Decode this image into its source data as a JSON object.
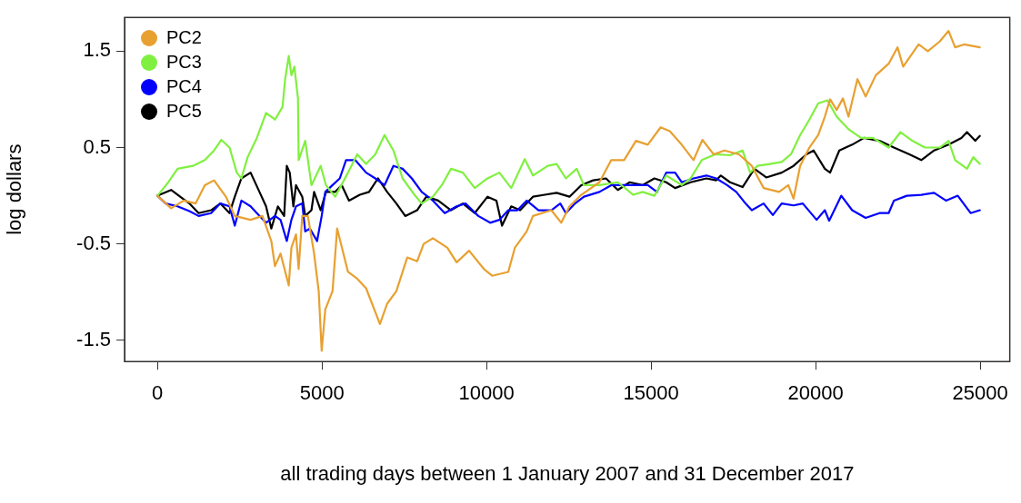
{
  "chart_data": {
    "type": "line",
    "xlabel": "all trading days between 1 January 2007 and 31 December 2017",
    "ylabel": "log dollars",
    "xlim": [
      -1000,
      25900
    ],
    "ylim": [
      -1.72,
      1.85
    ],
    "xticks": [
      0,
      5000,
      10000,
      15000,
      20000,
      25000
    ],
    "yticks": [
      -1.5,
      -0.5,
      0.5,
      1.5
    ],
    "grid": false,
    "legend": "top left",
    "marker": "none",
    "line_style": "solid",
    "series": [
      {
        "name": "PC2",
        "color": "#e8a030",
        "x": [
          0,
          415,
          800,
          1160,
          1440,
          1720,
          2080,
          2350,
          2830,
          3190,
          3460,
          3570,
          3740,
          3990,
          4070,
          4210,
          4290,
          4400,
          4570,
          4760,
          4900,
          4990,
          5100,
          5320,
          5460,
          5790,
          6070,
          6340,
          6760,
          6980,
          7260,
          7590,
          7890,
          8090,
          8370,
          8810,
          9090,
          9470,
          9920,
          10170,
          10660,
          10860,
          11220,
          11410,
          11970,
          12270,
          12520,
          12880,
          13430,
          13790,
          14180,
          14540,
          14900,
          15290,
          15570,
          15930,
          16290,
          16560,
          16900,
          17230,
          17670,
          18060,
          18420,
          18890,
          19170,
          19330,
          19530,
          19810,
          20080,
          20280,
          20440,
          20640,
          20830,
          21000,
          21270,
          21520,
          21830,
          22220,
          22490,
          22660,
          23130,
          23410,
          23770,
          24040,
          24240,
          24510,
          24990
        ],
        "values": [
          0.0,
          -0.13,
          -0.05,
          -0.08,
          0.11,
          0.16,
          -0.01,
          -0.21,
          -0.25,
          -0.21,
          -0.47,
          -0.73,
          -0.6,
          -0.93,
          -0.54,
          -0.4,
          -0.76,
          -0.21,
          -0.21,
          -0.6,
          -0.99,
          -1.61,
          -1.18,
          -0.99,
          -0.34,
          -0.79,
          -0.86,
          -0.96,
          -1.33,
          -1.12,
          -0.99,
          -0.64,
          -0.68,
          -0.5,
          -0.44,
          -0.54,
          -0.69,
          -0.57,
          -0.76,
          -0.83,
          -0.79,
          -0.54,
          -0.37,
          -0.21,
          -0.15,
          -0.28,
          -0.11,
          0.01,
          0.14,
          0.37,
          0.37,
          0.57,
          0.53,
          0.71,
          0.67,
          0.53,
          0.37,
          0.58,
          0.43,
          0.47,
          0.43,
          0.31,
          0.08,
          0.04,
          0.11,
          -0.03,
          0.31,
          0.5,
          0.63,
          0.82,
          1.0,
          0.89,
          1.01,
          0.82,
          1.21,
          1.03,
          1.25,
          1.37,
          1.54,
          1.34,
          1.57,
          1.5,
          1.6,
          1.71,
          1.54,
          1.57,
          1.54
        ]
      },
      {
        "name": "PC3",
        "color": "#80f040",
        "x": [
          0,
          330,
          610,
          1080,
          1440,
          1720,
          1940,
          2190,
          2410,
          2550,
          2740,
          3020,
          3300,
          3570,
          3800,
          3880,
          3990,
          4070,
          4160,
          4270,
          4290,
          4490,
          4680,
          4960,
          5120,
          5400,
          5790,
          6070,
          6340,
          6620,
          6900,
          7170,
          7450,
          7810,
          8030,
          8370,
          8640,
          8920,
          9280,
          9640,
          10030,
          10390,
          10750,
          11160,
          11410,
          11860,
          12130,
          12410,
          12740,
          12960,
          13430,
          13990,
          14460,
          14740,
          15100,
          15460,
          15930,
          16200,
          16540,
          16950,
          17400,
          17780,
          18010,
          18230,
          18610,
          18970,
          19250,
          19530,
          19810,
          20080,
          20360,
          20640,
          21000,
          21380,
          21740,
          22220,
          22580,
          22940,
          23320,
          23770,
          24040,
          24240,
          24600,
          24790,
          24990
        ],
        "values": [
          0.0,
          0.14,
          0.28,
          0.31,
          0.37,
          0.47,
          0.58,
          0.5,
          0.24,
          0.18,
          0.4,
          0.6,
          0.86,
          0.79,
          0.92,
          1.21,
          1.45,
          1.25,
          1.34,
          1.01,
          0.37,
          0.57,
          0.11,
          0.31,
          0.11,
          -0.01,
          0.24,
          0.43,
          0.33,
          0.43,
          0.63,
          0.47,
          0.18,
          0.01,
          -0.08,
          -0.01,
          0.11,
          0.28,
          0.24,
          0.08,
          0.18,
          0.24,
          0.08,
          0.38,
          0.21,
          0.31,
          0.33,
          0.18,
          0.28,
          0.11,
          0.11,
          0.14,
          0.01,
          0.04,
          0.0,
          0.21,
          0.11,
          0.18,
          0.37,
          0.43,
          0.42,
          0.47,
          0.24,
          0.31,
          0.33,
          0.35,
          0.43,
          0.63,
          0.79,
          0.96,
          0.99,
          0.82,
          0.69,
          0.6,
          0.6,
          0.5,
          0.66,
          0.57,
          0.5,
          0.5,
          0.57,
          0.37,
          0.28,
          0.4,
          0.33
        ]
      },
      {
        "name": "PC4",
        "color": "#0000ff",
        "x": [
          0,
          250,
          610,
          970,
          1250,
          1630,
          1910,
          2190,
          2350,
          2550,
          2830,
          3020,
          3300,
          3570,
          3740,
          3930,
          4070,
          4210,
          4400,
          4490,
          4630,
          4850,
          4990,
          5100,
          5320,
          5540,
          5730,
          6010,
          6340,
          6620,
          6900,
          7170,
          7450,
          7730,
          8030,
          8370,
          8730,
          9090,
          9360,
          9750,
          10110,
          10390,
          10660,
          10940,
          11220,
          11580,
          11970,
          12240,
          12410,
          12690,
          12960,
          13430,
          13790,
          14180,
          14540,
          14900,
          15180,
          15460,
          15730,
          15930,
          16290,
          16680,
          16980,
          17310,
          17590,
          17870,
          18060,
          18420,
          18700,
          18970,
          19330,
          19610,
          20030,
          20280,
          20410,
          20780,
          21110,
          21520,
          21940,
          22220,
          22380,
          22770,
          23210,
          23600,
          23960,
          24320,
          24710,
          24990
        ],
        "values": [
          0.0,
          -0.08,
          -0.11,
          -0.16,
          -0.21,
          -0.18,
          -0.08,
          -0.11,
          -0.31,
          -0.05,
          -0.11,
          -0.18,
          -0.28,
          -0.21,
          -0.25,
          -0.47,
          -0.25,
          -0.11,
          -0.08,
          -0.37,
          -0.34,
          -0.47,
          -0.21,
          0.04,
          0.11,
          0.18,
          0.37,
          0.37,
          0.24,
          0.18,
          0.11,
          0.31,
          0.28,
          0.18,
          0.04,
          -0.05,
          -0.18,
          -0.11,
          -0.08,
          -0.21,
          -0.28,
          -0.25,
          -0.15,
          -0.15,
          -0.05,
          -0.15,
          -0.15,
          -0.08,
          -0.18,
          -0.08,
          -0.01,
          0.04,
          0.11,
          0.11,
          0.11,
          0.11,
          0.04,
          0.24,
          0.24,
          0.14,
          0.18,
          0.21,
          0.18,
          0.11,
          0.04,
          -0.08,
          -0.15,
          -0.08,
          -0.2,
          -0.08,
          -0.1,
          -0.08,
          -0.25,
          -0.15,
          -0.26,
          0.0,
          -0.15,
          -0.23,
          -0.18,
          -0.18,
          -0.05,
          0.0,
          0.01,
          0.03,
          -0.05,
          0.0,
          -0.18,
          -0.15
        ]
      },
      {
        "name": "PC5",
        "color": "#000000",
        "x": [
          0,
          415,
          690,
          970,
          1250,
          1630,
          1910,
          2190,
          2350,
          2550,
          2830,
          3100,
          3300,
          3460,
          3660,
          3850,
          3930,
          4020,
          4130,
          4210,
          4400,
          4490,
          4680,
          4760,
          4960,
          5120,
          5400,
          5600,
          5820,
          6150,
          6430,
          6700,
          6980,
          7260,
          7530,
          7890,
          8170,
          8530,
          8920,
          9280,
          9640,
          10030,
          10300,
          10470,
          10750,
          11020,
          11410,
          11770,
          12130,
          12520,
          12880,
          13240,
          13630,
          13990,
          14350,
          14740,
          15100,
          15460,
          15730,
          16200,
          16680,
          16980,
          17120,
          17400,
          17780,
          18140,
          18500,
          18970,
          19330,
          19720,
          19940,
          20280,
          20440,
          20720,
          21110,
          21470,
          21940,
          22380,
          22850,
          23210,
          23600,
          24040,
          24430,
          24600,
          24850,
          24990
        ],
        "values": [
          0.0,
          0.06,
          -0.01,
          -0.08,
          -0.18,
          -0.15,
          -0.08,
          -0.18,
          -0.01,
          0.18,
          0.24,
          0.04,
          -0.11,
          -0.34,
          -0.11,
          -0.21,
          0.31,
          0.24,
          -0.11,
          0.11,
          -0.01,
          -0.21,
          -0.15,
          0.04,
          -0.15,
          0.04,
          0.04,
          0.11,
          -0.05,
          0.01,
          0.04,
          0.18,
          0.04,
          -0.08,
          -0.21,
          -0.15,
          -0.01,
          -0.05,
          -0.15,
          -0.08,
          -0.18,
          -0.01,
          -0.05,
          -0.31,
          -0.11,
          -0.15,
          -0.01,
          0.01,
          0.03,
          -0.01,
          0.11,
          0.16,
          0.18,
          0.06,
          0.14,
          0.11,
          0.18,
          0.14,
          0.08,
          0.14,
          0.18,
          0.16,
          0.21,
          0.14,
          0.09,
          0.28,
          0.19,
          0.24,
          0.31,
          0.43,
          0.47,
          0.28,
          0.24,
          0.47,
          0.53,
          0.6,
          0.57,
          0.5,
          0.43,
          0.37,
          0.47,
          0.53,
          0.6,
          0.66,
          0.57,
          0.62
        ]
      }
    ]
  }
}
